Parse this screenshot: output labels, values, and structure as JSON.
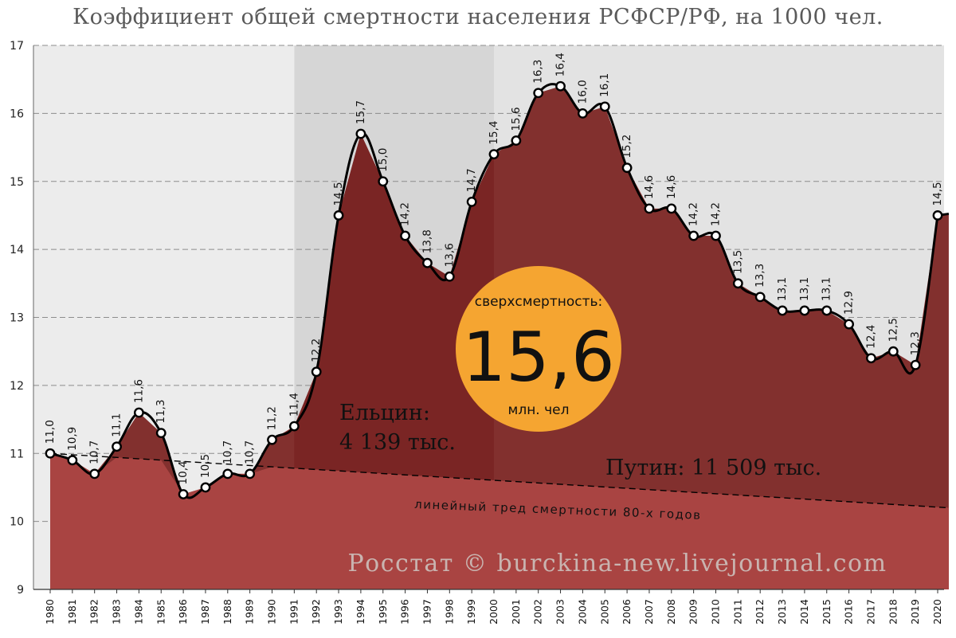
{
  "title": "Коэффициент общей смертности населения РСФСР/РФ, на 1000 чел.",
  "chart_data": {
    "type": "area",
    "title": "Коэффициент общей смертности населения РСФСР/РФ, на 1000 чел.",
    "xlabel": "",
    "ylabel": "",
    "ylim": [
      9,
      17
    ],
    "yticks": [
      "9",
      "10",
      "11",
      "12",
      "13",
      "14",
      "15",
      "16",
      "17"
    ],
    "grid": "horizontal dashed",
    "x": [
      1980,
      1981,
      1982,
      1983,
      1984,
      1985,
      1986,
      1987,
      1988,
      1989,
      1990,
      1991,
      1992,
      1993,
      1994,
      1995,
      1996,
      1997,
      1998,
      1999,
      2000,
      2001,
      2002,
      2003,
      2004,
      2005,
      2006,
      2007,
      2008,
      2009,
      2010,
      2011,
      2012,
      2013,
      2014,
      2015,
      2016,
      2017,
      2018,
      2019,
      2020
    ],
    "x_labels": [
      "1980",
      "1981",
      "1982",
      "1983",
      "1984",
      "1985",
      "1986",
      "1987",
      "1988",
      "1989",
      "1990",
      "1991",
      "1992",
      "1993",
      "1994",
      "1995",
      "1996",
      "1997",
      "1998",
      "1999",
      "2000",
      "2001",
      "2002",
      "2003",
      "2004",
      "2005",
      "2006",
      "2007",
      "2008",
      "2009",
      "2010",
      "2011",
      "2012",
      "2013",
      "2014",
      "2015",
      "2016",
      "2017",
      "2018",
      "2019",
      "2020"
    ],
    "values": [
      11.0,
      10.9,
      10.7,
      11.1,
      11.6,
      11.3,
      10.4,
      10.5,
      10.7,
      10.7,
      11.2,
      11.4,
      12.2,
      14.5,
      15.7,
      15.0,
      14.2,
      13.8,
      13.6,
      14.7,
      15.4,
      15.6,
      16.3,
      16.4,
      16.0,
      16.1,
      15.2,
      14.6,
      14.6,
      14.2,
      14.2,
      13.5,
      13.3,
      13.1,
      13.1,
      13.1,
      12.9,
      12.4,
      12.5,
      12.3,
      14.5
    ],
    "labels": [
      "11,0",
      "10,9",
      "10,7",
      "11,1",
      "11,6",
      "11,3",
      "10,4",
      "10,5",
      "10,7",
      "10,7",
      "11,2",
      "11,4",
      "12,2",
      "14,5",
      "15,7",
      "15,0",
      "14,2",
      "13,8",
      "13,6",
      "14,7",
      "15,4",
      "15,6",
      "16,3",
      "16,4",
      "16,0",
      "16,1",
      "15,2",
      "14,6",
      "14,6",
      "14,2",
      "14,2",
      "13,5",
      "13,3",
      "13,1",
      "13,1",
      "13,1",
      "12,9",
      "12,4",
      "12,5",
      "12,3",
      "14,5"
    ],
    "trend": {
      "x": [
        1980,
        2020.5
      ],
      "y": [
        11.0,
        10.2
      ]
    },
    "periods": [
      {
        "from": 1980,
        "to": 1991
      },
      {
        "from": 1991,
        "to": 2000
      },
      {
        "from": 2000,
        "to": 2020.5
      }
    ],
    "annotations": {
      "trend_label": "линейный тред смертности 80-х годов",
      "yeltsin_line1": "Ельцин:",
      "yeltsin_line2": "4 139 тыс.",
      "putin": "Путин: 11 509 тыс.",
      "badge_top": "сверхсмертность:",
      "badge_value": "15,6",
      "badge_bottom": "млн. чел",
      "watermark": "Росстат © burckina-new.livejournal.com"
    },
    "colors": {
      "area_below_trend": "#a94442",
      "excess_yeltsin": "#7a2524",
      "excess_putin": "#82302e",
      "badge": "#f5a531",
      "line": "#000000",
      "marker_fill": "#ffffff"
    }
  }
}
